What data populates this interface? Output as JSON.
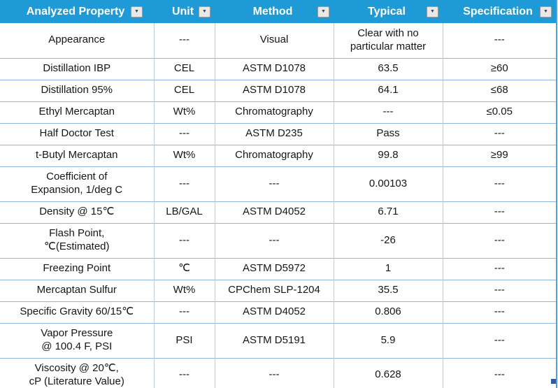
{
  "colors": {
    "header_bg": "#1e9bd7",
    "header_text": "#ffffff",
    "row_divider": "#8eb4e3",
    "column_divider": "#c0cbd8",
    "outer_border": "#5b9bd5",
    "resize_handle": "#2f5c9c",
    "filter_button_bg": "#e9e9e9"
  },
  "table": {
    "filter_icon": "▼",
    "columns": [
      {
        "label": "Analyzed Property"
      },
      {
        "label": "Unit"
      },
      {
        "label": "Method"
      },
      {
        "label": "Typical"
      },
      {
        "label": "Specification"
      }
    ],
    "rows": [
      {
        "tall": true,
        "cells": [
          "Appearance",
          "---",
          "Visual",
          "Clear with no\nparticular matter",
          "---"
        ]
      },
      {
        "tall": false,
        "cells": [
          "Distillation IBP",
          "CEL",
          "ASTM D1078",
          "63.5",
          "≥60"
        ]
      },
      {
        "tall": false,
        "cells": [
          "Distillation 95%",
          "CEL",
          "ASTM D1078",
          "64.1",
          "≤68"
        ]
      },
      {
        "tall": false,
        "cells": [
          "Ethyl Mercaptan",
          "Wt%",
          "Chromatography",
          "---",
          "≤0.05"
        ]
      },
      {
        "tall": false,
        "cells": [
          "Half Doctor Test",
          "---",
          "ASTM D235",
          "Pass",
          "---"
        ]
      },
      {
        "tall": false,
        "cells": [
          "t-Butyl Mercaptan",
          "Wt%",
          "Chromatography",
          "99.8",
          "≥99"
        ]
      },
      {
        "tall": true,
        "cells": [
          "Coefficient of\nExpansion, 1/deg C",
          "---",
          "---",
          "0.00103",
          "---"
        ]
      },
      {
        "tall": false,
        "cells": [
          "Density @ 15℃",
          "LB/GAL",
          "ASTM D4052",
          "6.71",
          "---"
        ]
      },
      {
        "tall": true,
        "cells": [
          "Flash Point,\n℃(Estimated)",
          "---",
          "---",
          "-26",
          "---"
        ]
      },
      {
        "tall": false,
        "cells": [
          "Freezing Point",
          "℃",
          "ASTM D5972",
          "1",
          "---"
        ]
      },
      {
        "tall": false,
        "cells": [
          "Mercaptan Sulfur",
          "Wt%",
          "CPChem SLP-1204",
          "35.5",
          "---"
        ]
      },
      {
        "tall": false,
        "cells": [
          "Specific Gravity 60/15℃",
          "---",
          "ASTM D4052",
          "0.806",
          "---"
        ]
      },
      {
        "tall": true,
        "cells": [
          "Vapor Pressure\n@ 100.4 F, PSI",
          "PSI",
          "ASTM D5191",
          "5.9",
          "---"
        ]
      },
      {
        "tall": true,
        "cells": [
          "Viscosity @ 20℃,\ncP (Literature Value)",
          "---",
          "---",
          "0.628",
          "---"
        ]
      }
    ]
  }
}
